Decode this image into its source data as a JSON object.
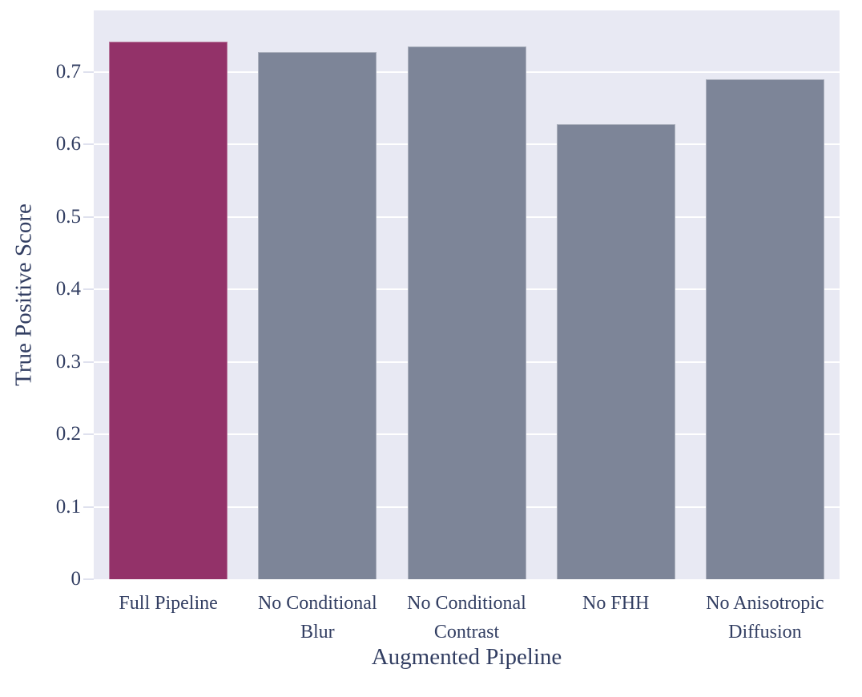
{
  "chart_data": {
    "type": "bar",
    "title": "",
    "categories": [
      "Full Pipeline",
      "No Conditional Blur",
      "No Conditional Contrast",
      "No FHH",
      "No Anisotropic Diffusion"
    ],
    "values": [
      0.742,
      0.727,
      0.735,
      0.628,
      0.69
    ],
    "bar_colors": [
      "#933269",
      "#7d8598",
      "#7d8598",
      "#7d8598",
      "#7d8598"
    ],
    "highlight_category": "Full Pipeline",
    "highlight_color": "#933269",
    "default_bar_color": "#7d8598",
    "xlabel": "Augmented Pipeline",
    "ylabel": "True Positive Score",
    "ylim": [
      0,
      0.785
    ],
    "yticks": [
      0,
      0.1,
      0.2,
      0.3,
      0.4,
      0.5,
      0.6,
      0.7
    ],
    "ytick_labels": [
      "0",
      "0.1",
      "0.2",
      "0.3",
      "0.4",
      "0.5",
      "0.6",
      "0.7"
    ],
    "grid": true,
    "grid_color": "#ffffff",
    "plot_background": "#e8e9f3",
    "text_color": "#323e62",
    "legend_position": "none"
  }
}
